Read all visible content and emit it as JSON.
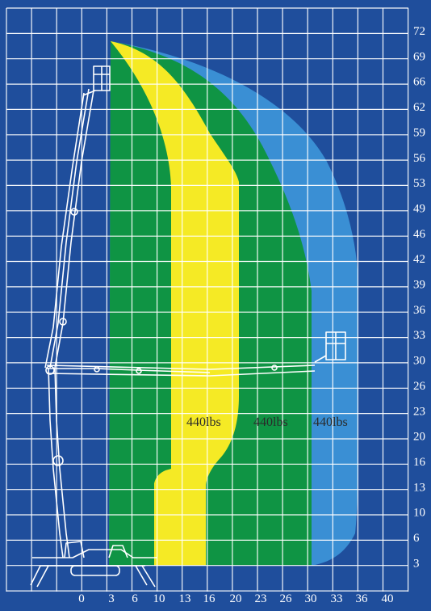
{
  "colors": {
    "background": "#1f4e9c",
    "grid": "#ffffff",
    "zone_yellow": "#f5ea25",
    "zone_green": "#0f9444",
    "zone_blue": "#3a8fd4",
    "label_text": "#2a2a2a"
  },
  "x_ticks": [
    "0",
    "3",
    "6",
    "10",
    "13",
    "16",
    "20",
    "23",
    "26",
    "30",
    "33",
    "36",
    "40"
  ],
  "y_ticks": [
    "72",
    "69",
    "66",
    "62",
    "59",
    "56",
    "53",
    "49",
    "46",
    "42",
    "39",
    "36",
    "33",
    "30",
    "26",
    "23",
    "20",
    "16",
    "13",
    "10",
    "6",
    "3"
  ],
  "zones": [
    {
      "name": "yellow",
      "label": "440lbs",
      "color": "#f5ea25"
    },
    {
      "name": "green",
      "label": "440lbs",
      "color": "#0f9444"
    },
    {
      "name": "blue",
      "label": "440lbs",
      "color": "#3a8fd4"
    }
  ]
}
